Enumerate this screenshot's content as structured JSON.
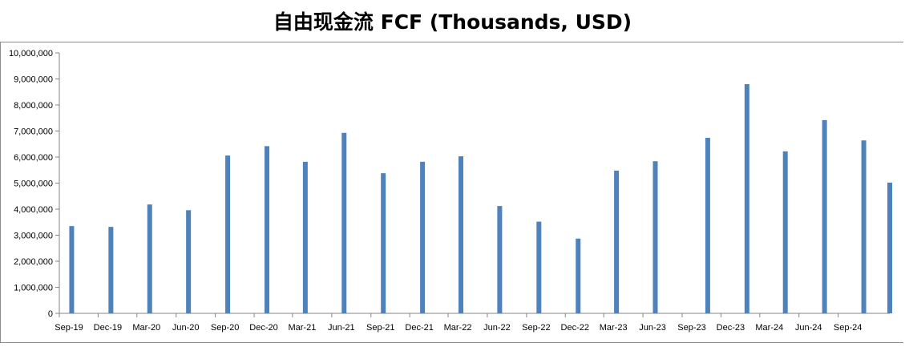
{
  "chart_data": {
    "type": "bar",
    "title": "自由现金流 FCF (Thousands, USD)",
    "xlabel": "",
    "ylabel": "",
    "ylim": [
      0,
      10000000
    ],
    "y_ticks": [
      "0",
      "1,000,000",
      "2,000,000",
      "3,000,000",
      "4,000,000",
      "5,000,000",
      "6,000,000",
      "7,000,000",
      "8,000,000",
      "9,000,000",
      "10,000,000"
    ],
    "x_tick_labels": [
      "Sep-19",
      "Dec-19",
      "Mar-20",
      "Jun-20",
      "Sep-20",
      "Dec-20",
      "Mar-21",
      "Jun-21",
      "Sep-21",
      "Dec-21",
      "Mar-22",
      "Jun-22",
      "Sep-22",
      "Dec-22",
      "Mar-23",
      "Jun-23",
      "Sep-23",
      "Dec-23",
      "Mar-24",
      "Jun-24",
      "Sep-24"
    ],
    "x_range": [
      "2019-09-01",
      "2024-12-31"
    ],
    "bar_color": "#4f81bd",
    "grid": false,
    "legend": "none",
    "series": [
      {
        "dates": [
          "2019-09-30",
          "2019-12-31",
          "2020-03-31",
          "2020-06-30",
          "2020-09-30",
          "2020-12-31",
          "2021-03-31",
          "2021-06-30",
          "2021-09-30",
          "2021-12-31",
          "2022-03-31",
          "2022-06-30",
          "2022-09-30",
          "2022-12-31",
          "2023-03-31",
          "2023-06-30",
          "2023-10-31",
          "2024-01-31",
          "2024-04-30",
          "2024-07-31",
          "2024-10-31",
          "2024-12-31"
        ],
        "values": [
          3350000,
          3320000,
          4180000,
          3960000,
          6060000,
          6420000,
          5820000,
          6930000,
          5380000,
          5820000,
          6030000,
          4120000,
          3520000,
          2870000,
          5480000,
          5840000,
          6740000,
          8800000,
          6220000,
          7420000,
          6640000,
          5020000
        ]
      }
    ]
  }
}
